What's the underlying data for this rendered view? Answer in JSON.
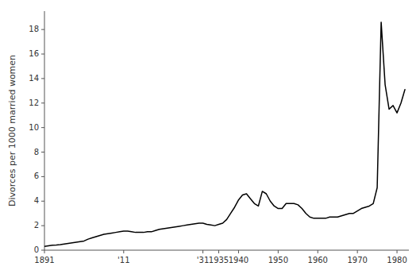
{
  "chart_data": {
    "type": "line",
    "ylabel": "Divorces per 1000 married women",
    "color": "#000000",
    "grid": false,
    "xlim": [
      1891,
      1983
    ],
    "ylim": [
      0,
      19.5
    ],
    "yticks": [
      0,
      2,
      4,
      6,
      8,
      10,
      12,
      14,
      16,
      18
    ],
    "xticks": [
      1891,
      {
        "value": 1911,
        "label": "'11"
      },
      {
        "value": 1931,
        "label": "'31"
      },
      1935,
      1940,
      1950,
      1960,
      1970,
      1980
    ],
    "x": [
      1891,
      1892,
      1893,
      1894,
      1895,
      1896,
      1897,
      1898,
      1899,
      1900,
      1901,
      1902,
      1903,
      1904,
      1905,
      1906,
      1907,
      1908,
      1909,
      1910,
      1911,
      1912,
      1913,
      1914,
      1915,
      1916,
      1917,
      1918,
      1919,
      1920,
      1921,
      1922,
      1923,
      1924,
      1925,
      1926,
      1927,
      1928,
      1929,
      1930,
      1931,
      1932,
      1933,
      1934,
      1935,
      1936,
      1937,
      1938,
      1939,
      1940,
      1941,
      1942,
      1943,
      1944,
      1945,
      1946,
      1947,
      1948,
      1949,
      1950,
      1951,
      1952,
      1953,
      1954,
      1955,
      1956,
      1957,
      1958,
      1959,
      1960,
      1961,
      1962,
      1963,
      1964,
      1965,
      1966,
      1967,
      1968,
      1969,
      1970,
      1971,
      1972,
      1973,
      1974,
      1975,
      1976,
      1977,
      1978,
      1979,
      1980,
      1981,
      1982
    ],
    "values": [
      0.3,
      0.35,
      0.4,
      0.42,
      0.45,
      0.5,
      0.55,
      0.6,
      0.65,
      0.7,
      0.75,
      0.9,
      1.0,
      1.1,
      1.2,
      1.3,
      1.35,
      1.4,
      1.45,
      1.5,
      1.55,
      1.55,
      1.5,
      1.45,
      1.45,
      1.45,
      1.5,
      1.5,
      1.6,
      1.7,
      1.75,
      1.8,
      1.85,
      1.9,
      1.95,
      2.0,
      2.05,
      2.1,
      2.15,
      2.2,
      2.2,
      2.1,
      2.05,
      2.0,
      2.1,
      2.2,
      2.5,
      3.0,
      3.5,
      4.1,
      4.5,
      4.6,
      4.2,
      3.8,
      3.6,
      4.8,
      4.6,
      4.0,
      3.6,
      3.4,
      3.4,
      3.8,
      3.8,
      3.8,
      3.7,
      3.4,
      3.0,
      2.7,
      2.6,
      2.6,
      2.6,
      2.6,
      2.7,
      2.7,
      2.7,
      2.8,
      2.9,
      3.0,
      3.0,
      3.2,
      3.4,
      3.5,
      3.6,
      3.8,
      5.1,
      18.6,
      13.5,
      11.5,
      11.8,
      11.2,
      12.0,
      13.1
    ]
  }
}
